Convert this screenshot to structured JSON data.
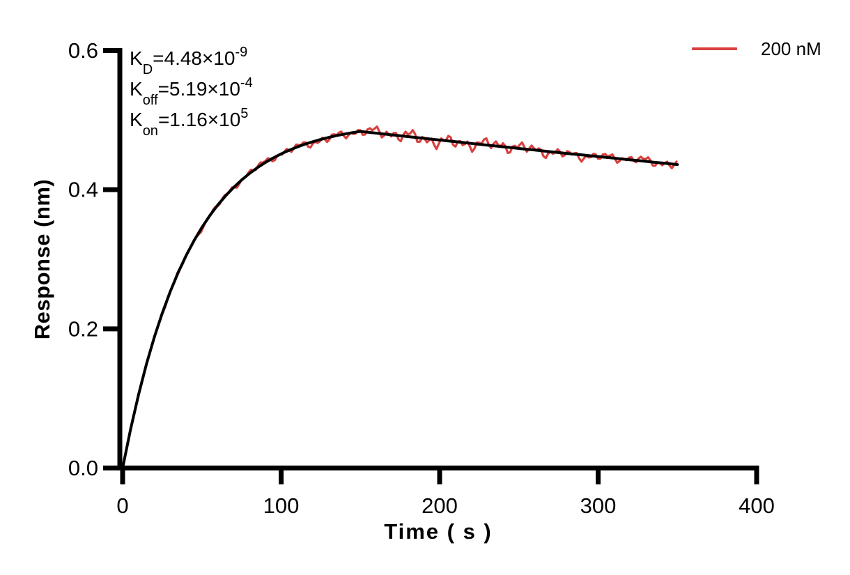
{
  "chart_data": {
    "type": "line",
    "title": "",
    "xlabel": "Time ( s )",
    "ylabel": "Response (nm)",
    "xlim": [
      0,
      400
    ],
    "ylim": [
      0,
      0.6
    ],
    "grid": false,
    "legend_position": "top-right-outside",
    "x_ticks": [
      {
        "v": 0,
        "label": "0"
      },
      {
        "v": 100,
        "label": "100"
      },
      {
        "v": 200,
        "label": "200"
      },
      {
        "v": 300,
        "label": "300"
      },
      {
        "v": 400,
        "label": "400"
      }
    ],
    "y_ticks": [
      {
        "v": 0.0,
        "label": "0.0"
      },
      {
        "v": 0.2,
        "label": "0.2"
      },
      {
        "v": 0.4,
        "label": "0.4"
      },
      {
        "v": 0.6,
        "label": "0.6"
      }
    ],
    "legend": [
      {
        "label": "200 nM",
        "color": "#d8413f"
      }
    ],
    "annotations": {
      "lines": [
        {
          "segments": [
            {
              "t": "K"
            },
            {
              "sub": "D"
            },
            {
              "t": "=4.48×10"
            },
            {
              "sup": "-9"
            }
          ]
        },
        {
          "segments": [
            {
              "t": "K"
            },
            {
              "sub": "off"
            },
            {
              "t": "=5.19×10"
            },
            {
              "sup": "-4"
            }
          ]
        },
        {
          "segments": [
            {
              "t": "K"
            },
            {
              "sub": "on"
            },
            {
              "t": "=1.16×10"
            },
            {
              "sup": "5"
            }
          ]
        }
      ]
    },
    "series": [
      {
        "name": "fit",
        "role": "fitted-curve",
        "color": "#000000",
        "width": 4,
        "points": [
          [
            0,
            0
          ],
          [
            5,
            0.0556
          ],
          [
            10,
            0.1051
          ],
          [
            15,
            0.149
          ],
          [
            20,
            0.188
          ],
          [
            25,
            0.2226
          ],
          [
            30,
            0.2534
          ],
          [
            35,
            0.2807
          ],
          [
            40,
            0.305
          ],
          [
            45,
            0.3266
          ],
          [
            50,
            0.3458
          ],
          [
            55,
            0.3628
          ],
          [
            60,
            0.3779
          ],
          [
            65,
            0.3913
          ],
          [
            70,
            0.4032
          ],
          [
            75,
            0.4138
          ],
          [
            80,
            0.4232
          ],
          [
            85,
            0.4316
          ],
          [
            90,
            0.439
          ],
          [
            95,
            0.4456
          ],
          [
            100,
            0.4515
          ],
          [
            105,
            0.4567
          ],
          [
            110,
            0.4613
          ],
          [
            115,
            0.4654
          ],
          [
            120,
            0.469
          ],
          [
            125,
            0.4723
          ],
          [
            130,
            0.4751
          ],
          [
            135,
            0.4777
          ],
          [
            140,
            0.48
          ],
          [
            145,
            0.482
          ],
          [
            150,
            0.4838
          ],
          [
            155,
            0.4825
          ],
          [
            160,
            0.4813
          ],
          [
            165,
            0.48
          ],
          [
            170,
            0.4788
          ],
          [
            175,
            0.4776
          ],
          [
            180,
            0.4763
          ],
          [
            185,
            0.4751
          ],
          [
            190,
            0.4739
          ],
          [
            195,
            0.4726
          ],
          [
            200,
            0.4714
          ],
          [
            205,
            0.4702
          ],
          [
            210,
            0.469
          ],
          [
            215,
            0.4678
          ],
          [
            220,
            0.4665
          ],
          [
            225,
            0.4653
          ],
          [
            230,
            0.4641
          ],
          [
            235,
            0.4629
          ],
          [
            240,
            0.4617
          ],
          [
            245,
            0.4605
          ],
          [
            250,
            0.4593
          ],
          [
            255,
            0.4581
          ],
          [
            260,
            0.457
          ],
          [
            265,
            0.4558
          ],
          [
            270,
            0.4546
          ],
          [
            275,
            0.4534
          ],
          [
            280,
            0.4522
          ],
          [
            285,
            0.4511
          ],
          [
            290,
            0.4499
          ],
          [
            295,
            0.4487
          ],
          [
            300,
            0.4476
          ],
          [
            305,
            0.4464
          ],
          [
            310,
            0.4453
          ],
          [
            315,
            0.4441
          ],
          [
            320,
            0.443
          ],
          [
            325,
            0.4418
          ],
          [
            330,
            0.4407
          ],
          [
            335,
            0.4395
          ],
          [
            340,
            0.4384
          ],
          [
            345,
            0.4373
          ],
          [
            350,
            0.4361
          ]
        ]
      },
      {
        "name": "200 nM",
        "role": "measured-trace",
        "color": "#d8413f",
        "width": 3.2,
        "t_start": 0,
        "t_end": 350,
        "noise": {
          "step": 1.5,
          "components": [
            {
              "f": 1.1,
              "p": 0.7,
              "a": 0.6
            },
            {
              "f": 0.55,
              "p": 2.4,
              "a": 0.5
            },
            {
              "f": 0.26,
              "p": 4.4,
              "a": 0.45
            },
            {
              "f": 0.08,
              "p": 1.0,
              "a": 0.25
            }
          ],
          "envelope": [
            [
              0,
              0.0008
            ],
            [
              30,
              0.0018
            ],
            [
              60,
              0.003
            ],
            [
              90,
              0.004
            ],
            [
              120,
              0.005
            ],
            [
              150,
              0.0055
            ],
            [
              170,
              0.008
            ],
            [
              200,
              0.0085
            ],
            [
              240,
              0.0075
            ],
            [
              280,
              0.006
            ],
            [
              320,
              0.005
            ],
            [
              350,
              0.0058
            ]
          ]
        }
      }
    ],
    "kinetics_phase_split_s": 150
  }
}
